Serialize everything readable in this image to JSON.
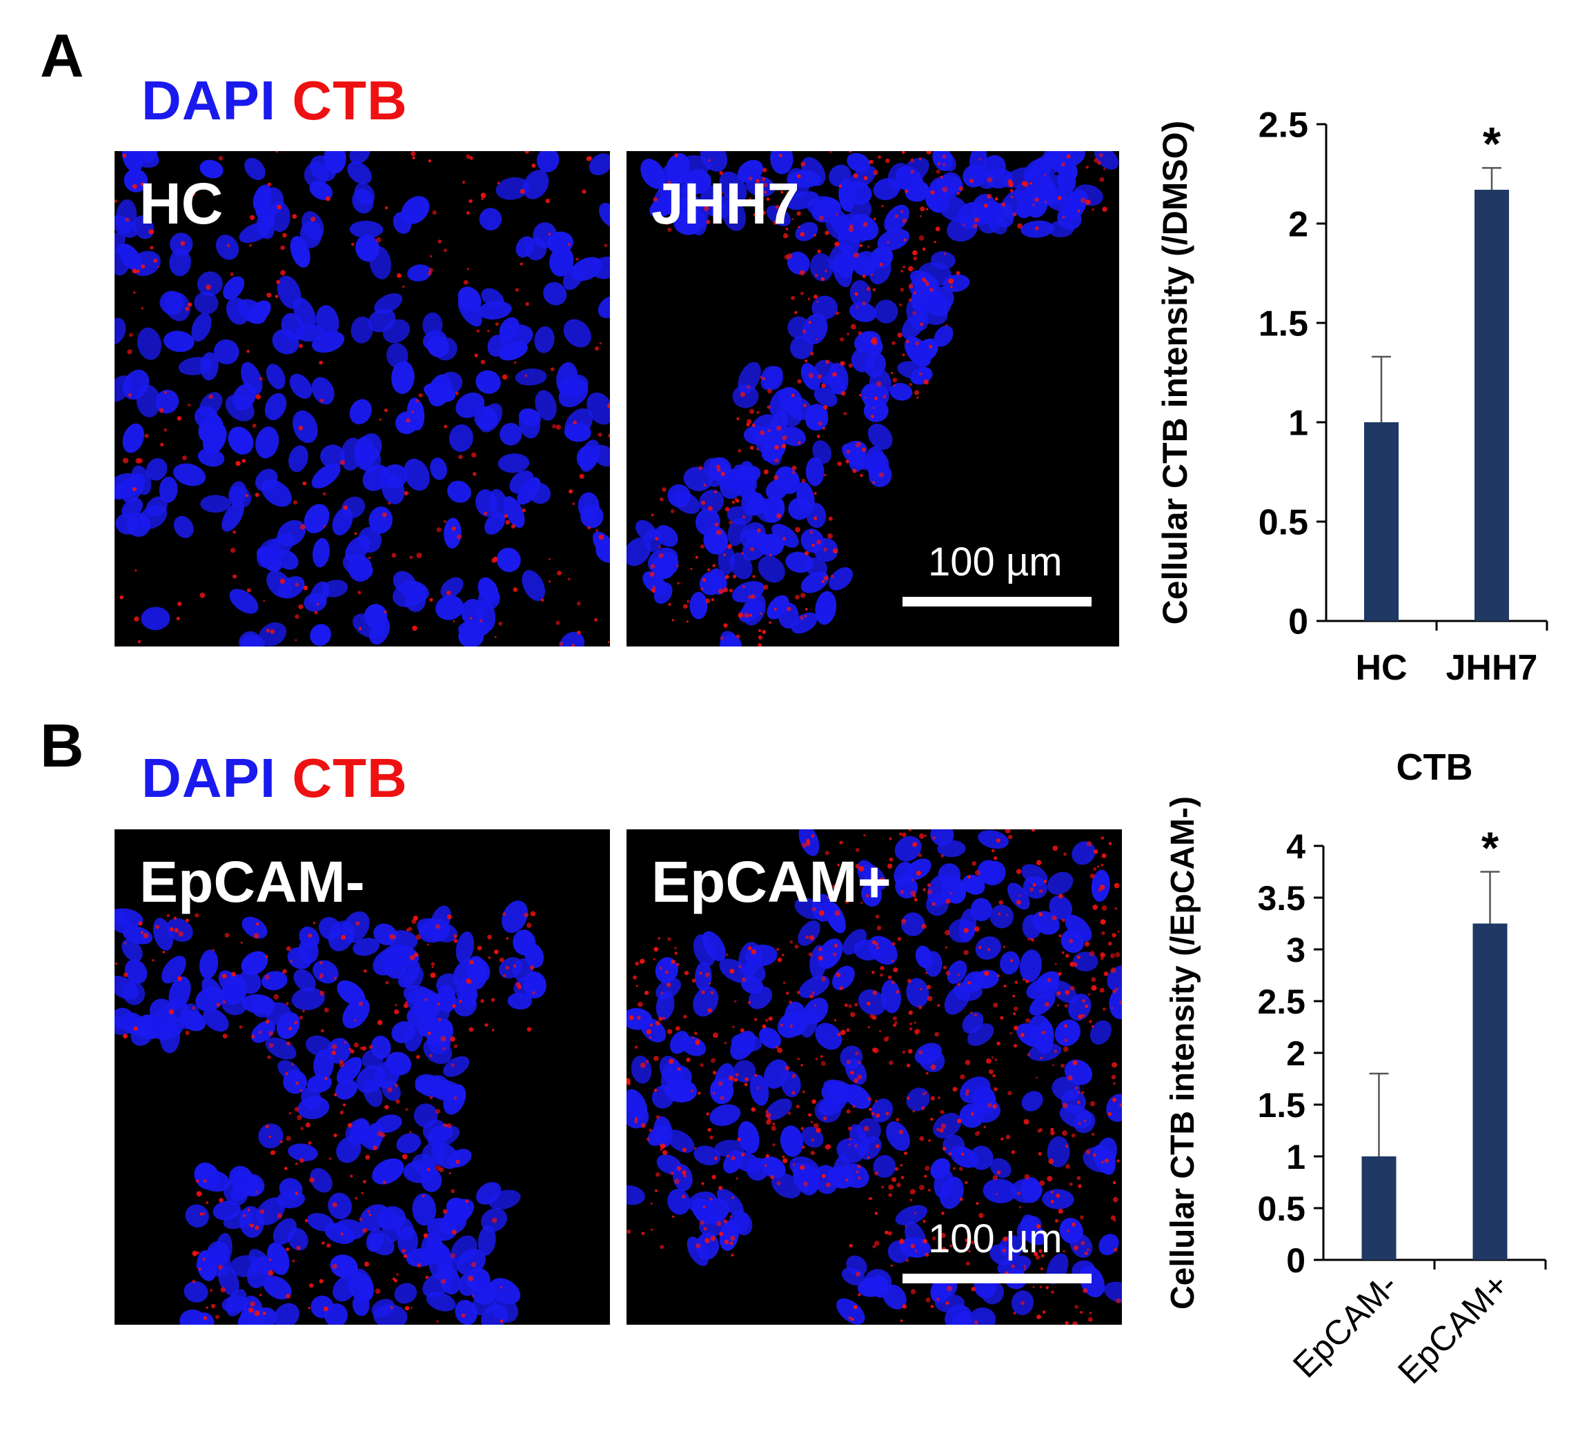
{
  "panels": [
    {
      "letter": "A",
      "legend": {
        "dapi": "DAPI",
        "ctb": "CTB"
      },
      "images": [
        {
          "label": "HC"
        },
        {
          "label": "JHH7",
          "scale_bar": "100 µm"
        }
      ]
    },
    {
      "letter": "B",
      "legend": {
        "dapi": "DAPI",
        "ctb": "CTB"
      },
      "images": [
        {
          "label": "EpCAM-"
        },
        {
          "label": "EpCAM+",
          "scale_bar": "100 µm"
        }
      ]
    }
  ],
  "colors": {
    "dapi": "#1a1aee",
    "ctb": "#ee1111",
    "bar": "#1f3864",
    "image_bg": "#000000"
  },
  "chart_data": [
    {
      "type": "bar",
      "title": "",
      "ylabel": "Cellular CTB intensity (/DMSO)",
      "xlabel": "",
      "categories": [
        "HC",
        "JHH7"
      ],
      "values": [
        1.0,
        2.17
      ],
      "error": [
        0.33,
        0.11
      ],
      "significance": [
        "",
        "*"
      ],
      "ylim": [
        0,
        2.5
      ],
      "yticks": [
        "0",
        "0.5",
        "1",
        "1.5",
        "2",
        "2.5"
      ],
      "grid": false,
      "legend": "none"
    },
    {
      "type": "bar",
      "title": "CTB",
      "ylabel": "Cellular CTB intensity (/EpCAM-)",
      "xlabel": "",
      "categories": [
        "EpCAM-",
        "EpCAM+"
      ],
      "values": [
        1.0,
        3.25
      ],
      "error": [
        0.8,
        0.5
      ],
      "significance": [
        "",
        "*"
      ],
      "ylim": [
        0,
        4
      ],
      "yticks": [
        "0",
        "0.5",
        "1",
        "1.5",
        "2",
        "2.5",
        "3",
        "3.5",
        "4"
      ],
      "grid": false,
      "legend": "none"
    }
  ]
}
